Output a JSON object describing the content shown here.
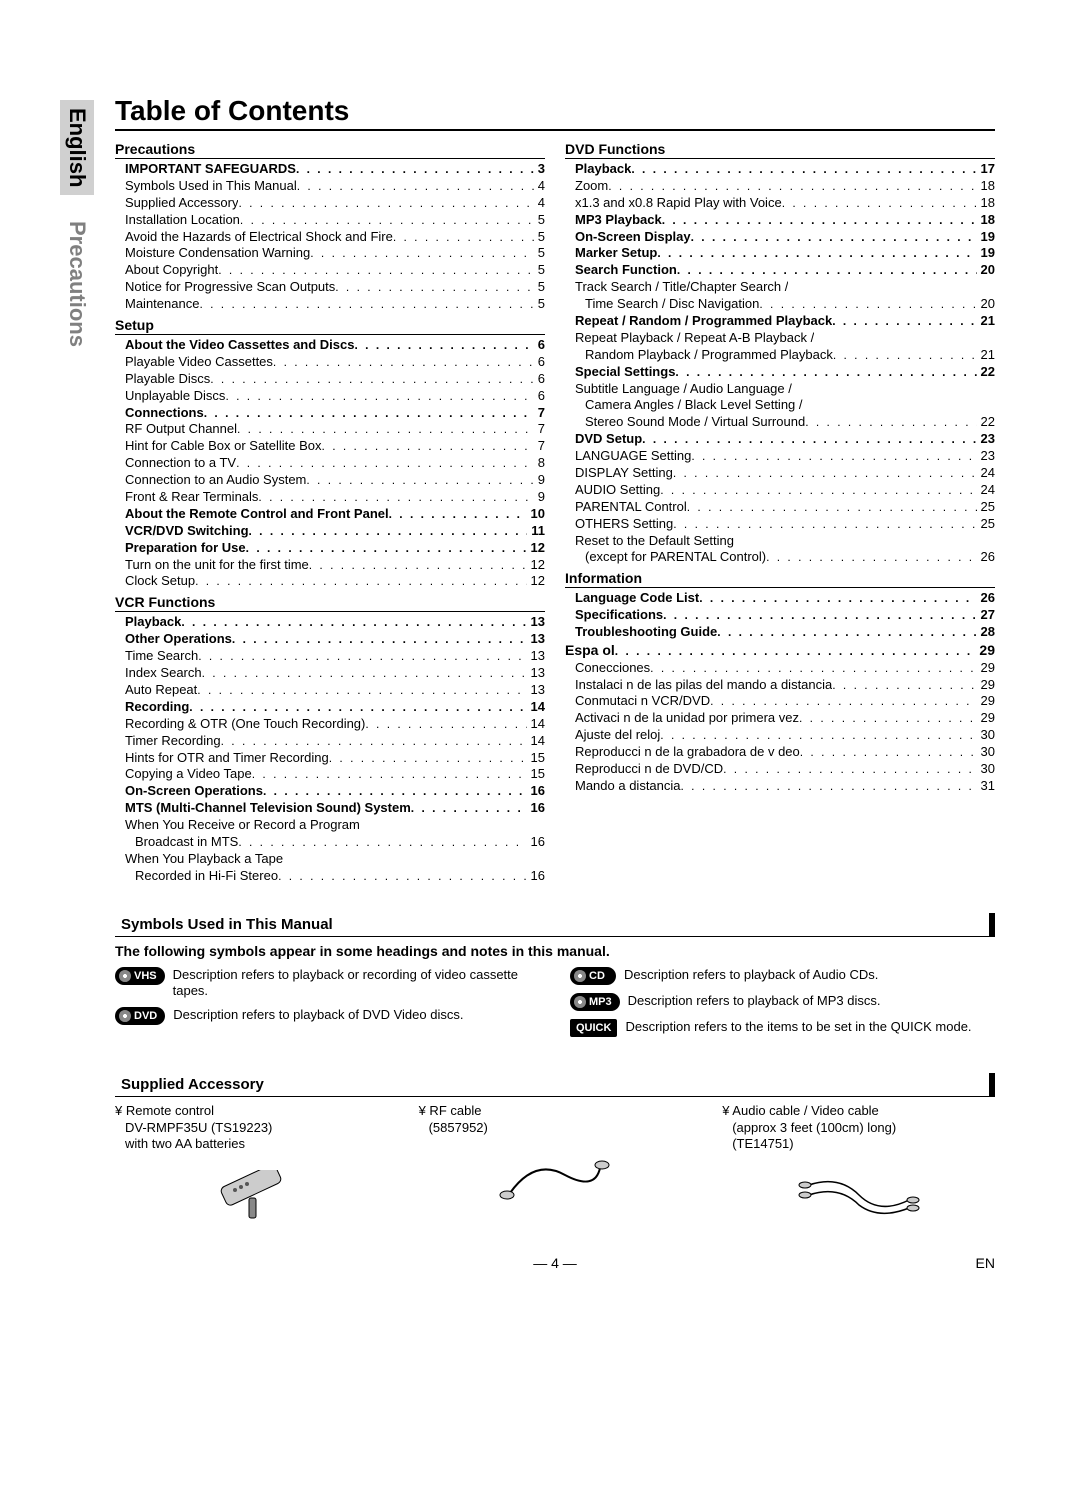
{
  "sideTabs": {
    "english": "English",
    "precautions": "Precautions"
  },
  "title": "Table of Contents",
  "colLeft": [
    {
      "type": "head",
      "label": "Precautions"
    },
    {
      "bold": true,
      "indent": 1,
      "label": "IMPORTANT SAFEGUARDS",
      "page": "3"
    },
    {
      "indent": 1,
      "label": "Symbols Used in This Manual",
      "page": "4"
    },
    {
      "indent": 1,
      "label": "Supplied Accessory",
      "page": "4"
    },
    {
      "indent": 1,
      "label": "Installation Location",
      "page": "5"
    },
    {
      "indent": 1,
      "label": "Avoid the Hazards of Electrical Shock and Fire",
      "page": "5"
    },
    {
      "indent": 1,
      "label": "Moisture Condensation Warning",
      "page": "5"
    },
    {
      "indent": 1,
      "label": "About Copyright",
      "page": "5"
    },
    {
      "indent": 1,
      "label": "Notice for Progressive Scan Outputs",
      "page": "5"
    },
    {
      "indent": 1,
      "label": "Maintenance",
      "page": "5"
    },
    {
      "type": "head",
      "label": "Setup"
    },
    {
      "bold": true,
      "indent": 1,
      "label": "About the Video Cassettes and Discs",
      "page": "6"
    },
    {
      "indent": 1,
      "label": "Playable Video Cassettes",
      "page": "6"
    },
    {
      "indent": 1,
      "label": "Playable Discs",
      "page": "6"
    },
    {
      "indent": 1,
      "label": "Unplayable Discs",
      "page": "6"
    },
    {
      "bold": true,
      "indent": 1,
      "label": "Connections",
      "page": "7"
    },
    {
      "indent": 1,
      "label": "RF Output Channel",
      "page": "7"
    },
    {
      "indent": 1,
      "label": "Hint for Cable Box or Satellite Box",
      "page": "7"
    },
    {
      "indent": 1,
      "label": "Connection to a TV",
      "page": "8"
    },
    {
      "indent": 1,
      "label": "Connection to an Audio System",
      "page": "9"
    },
    {
      "indent": 1,
      "label": "Front & Rear Terminals",
      "page": "9"
    },
    {
      "bold": true,
      "indent": 1,
      "label": "About the Remote Control and Front Panel",
      "page": "10"
    },
    {
      "bold": true,
      "indent": 1,
      "label": "VCR/DVD Switching",
      "page": "11"
    },
    {
      "bold": true,
      "indent": 1,
      "label": "Preparation for Use",
      "page": "12"
    },
    {
      "indent": 1,
      "label": "Turn on the unit for the first time",
      "page": "12"
    },
    {
      "indent": 1,
      "label": "Clock Setup",
      "page": "12"
    },
    {
      "type": "head",
      "label": "VCR Functions"
    },
    {
      "bold": true,
      "indent": 1,
      "label": "Playback",
      "page": "13"
    },
    {
      "bold": true,
      "indent": 1,
      "label": "Other Operations",
      "page": "13"
    },
    {
      "indent": 1,
      "label": "Time Search",
      "page": "13"
    },
    {
      "indent": 1,
      "label": "Index Search",
      "page": "13"
    },
    {
      "indent": 1,
      "label": "Auto Repeat",
      "page": "13"
    },
    {
      "bold": true,
      "indent": 1,
      "label": "Recording",
      "page": "14"
    },
    {
      "indent": 1,
      "label": "Recording & OTR (One Touch Recording)",
      "page": "14"
    },
    {
      "indent": 1,
      "label": "Timer Recording",
      "page": "14"
    },
    {
      "indent": 1,
      "label": "Hints for OTR and Timer Recording",
      "page": "15"
    },
    {
      "indent": 1,
      "label": "Copying a Video Tape",
      "page": "15"
    },
    {
      "bold": true,
      "indent": 1,
      "label": "On-Screen Operations",
      "page": "16"
    },
    {
      "bold": true,
      "indent": 1,
      "label": "MTS (Multi-Channel Television Sound) System",
      "page": "16"
    },
    {
      "indent": 1,
      "label": "When You Receive or Record a Program",
      "nopage": true
    },
    {
      "indent": 2,
      "label": "Broadcast in MTS",
      "page": "16"
    },
    {
      "indent": 1,
      "label": "When You Playback a Tape",
      "nopage": true
    },
    {
      "indent": 2,
      "label": "Recorded in Hi-Fi Stereo",
      "page": "16"
    }
  ],
  "colRight": [
    {
      "type": "head",
      "label": "DVD Functions"
    },
    {
      "bold": true,
      "indent": 1,
      "label": "Playback",
      "page": "17"
    },
    {
      "indent": 1,
      "label": "Zoom",
      "page": "18"
    },
    {
      "indent": 1,
      "label": "x1.3 and x0.8 Rapid Play with Voice",
      "page": "18"
    },
    {
      "bold": true,
      "indent": 1,
      "label": "MP3 Playback",
      "page": "18"
    },
    {
      "bold": true,
      "indent": 1,
      "label": "On-Screen Display",
      "page": "19"
    },
    {
      "bold": true,
      "indent": 1,
      "label": "Marker Setup",
      "page": "19"
    },
    {
      "bold": true,
      "indent": 1,
      "label": "Search Function",
      "page": "20"
    },
    {
      "indent": 1,
      "label": "Track Search / Title/Chapter Search /",
      "nopage": true
    },
    {
      "indent": 2,
      "label": "Time Search / Disc Navigation",
      "page": "20"
    },
    {
      "bold": true,
      "indent": 1,
      "label": "Repeat / Random / Programmed Playback",
      "page": "21"
    },
    {
      "indent": 1,
      "label": "Repeat Playback / Repeat A-B Playback /",
      "nopage": true
    },
    {
      "indent": 2,
      "label": "Random Playback / Programmed Playback",
      "page": "21"
    },
    {
      "bold": true,
      "indent": 1,
      "label": "Special Settings",
      "page": "22"
    },
    {
      "indent": 1,
      "label": "Subtitle Language / Audio Language /",
      "nopage": true
    },
    {
      "indent": 2,
      "label": "Camera Angles / Black Level Setting /",
      "nopage": true
    },
    {
      "indent": 2,
      "label": "Stereo Sound Mode / Virtual Surround",
      "page": "22"
    },
    {
      "bold": true,
      "indent": 1,
      "label": "DVD Setup",
      "page": "23"
    },
    {
      "indent": 1,
      "label": "LANGUAGE Setting",
      "page": "23"
    },
    {
      "indent": 1,
      "label": "DISPLAY Setting",
      "page": "24"
    },
    {
      "indent": 1,
      "label": "AUDIO Setting",
      "page": "24"
    },
    {
      "indent": 1,
      "label": "PARENTAL Control",
      "page": "25"
    },
    {
      "indent": 1,
      "label": "OTHERS Setting",
      "page": "25"
    },
    {
      "indent": 1,
      "label": "Reset to the Default Setting",
      "nopage": true
    },
    {
      "indent": 2,
      "label": "(except for PARENTAL Control)",
      "page": "26"
    },
    {
      "type": "head",
      "label": "Information"
    },
    {
      "bold": true,
      "indent": 1,
      "label": "Language Code List",
      "page": "26"
    },
    {
      "bold": true,
      "indent": 1,
      "label": "Specifications",
      "page": "27"
    },
    {
      "bold": true,
      "indent": 1,
      "label": "Troubleshooting Guide",
      "page": "28"
    },
    {
      "type": "espanol",
      "bold": true,
      "label": "Espa ol",
      "page": "29"
    },
    {
      "indent": 1,
      "label": "Conecciones",
      "page": "29"
    },
    {
      "indent": 1,
      "label": "Instalaci n de las pilas del mando a distancia",
      "page": "29"
    },
    {
      "indent": 1,
      "label": "Conmutaci n VCR/DVD",
      "page": "29"
    },
    {
      "indent": 1,
      "label": "Activaci n de la unidad por primera vez",
      "page": "29"
    },
    {
      "indent": 1,
      "label": "Ajuste del reloj",
      "page": "30"
    },
    {
      "indent": 1,
      "label": "Reproducci n de la grabadora de v deo",
      "page": "30"
    },
    {
      "indent": 1,
      "label": "Reproducci n de DVD/CD",
      "page": "30"
    },
    {
      "indent": 1,
      "label": "Mando a distancia",
      "page": "31"
    }
  ],
  "symbolsSection": {
    "heading": "Symbols Used in This Manual",
    "intro": "The following symbols appear in some headings and notes in this manual.",
    "left": [
      {
        "badge": "VHS",
        "disc": true,
        "text": "Description refers to playback or recording of video cassette tapes."
      },
      {
        "badge": "DVD",
        "disc": true,
        "text": "Description refers to playback of DVD Video discs."
      }
    ],
    "right": [
      {
        "badge": "CD",
        "disc": true,
        "text": "Description refers to playback of Audio CDs."
      },
      {
        "badge": "MP3",
        "disc": true,
        "text": "Description refers to playback of MP3 discs."
      },
      {
        "badge": "QUICK",
        "quick": true,
        "text": "Description refers to the items to be set in the QUICK mode."
      }
    ]
  },
  "accessory": {
    "heading": "Supplied Accessory",
    "items": [
      {
        "l1": "¥ Remote control",
        "l2": "DV-RMPF35U (TS19223)",
        "l3": "with two AA batteries"
      },
      {
        "l1": "¥ RF cable",
        "l2": "(5857952)",
        "l3": ""
      },
      {
        "l1": "¥ Audio cable / Video cable",
        "l2": "(approx 3 feet (100cm) long)",
        "l3": "(TE14751)"
      }
    ]
  },
  "footer": {
    "page": "— 4 —",
    "lang": "EN"
  }
}
